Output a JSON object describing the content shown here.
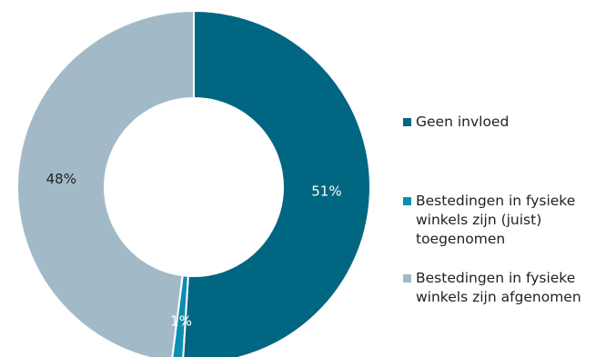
{
  "chart_data": {
    "type": "pie",
    "donut": true,
    "categories": [
      "Geen invloed",
      "Bestedingen in fysieke winkels zijn (juist) toegenomen",
      "Bestedingen in fysieke winkels zijn afgenomen"
    ],
    "values": [
      51,
      1,
      48
    ],
    "data_labels": [
      "51%",
      "1%",
      "48%"
    ],
    "colors": [
      "#006682",
      "#0a8fb1",
      "#a2bac8"
    ],
    "legend_labels": [
      "Geen invloed",
      "Bestedingen in fysieke\nwinkels zijn (juist)\ntoegenomen",
      "Bestedingen in fysieke\nwinkels zijn afgenomen"
    ],
    "legend_position": "right",
    "label_colors": [
      "#ffffff",
      "#ffffff",
      "#222222"
    ]
  }
}
